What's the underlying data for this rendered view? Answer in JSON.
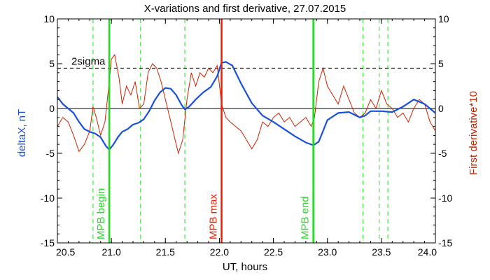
{
  "chart_data": {
    "type": "line",
    "title": "X-variations and first derivative, 27.07.2015",
    "xlabel": "UT, hours",
    "ylabel_left": "deltaX, nT",
    "ylabel_right": "First derivative*10",
    "xlim": [
      20.5,
      24.0
    ],
    "ylim": [
      -15,
      10
    ],
    "x_ticks": [
      "20.5",
      "21.0",
      "21.5",
      "22.0",
      "22.5",
      "23.0",
      "23.5",
      "24.0"
    ],
    "x_tick_values": [
      20.5,
      21.0,
      21.5,
      22.0,
      22.5,
      23.0,
      23.5,
      24.0
    ],
    "y_ticks": [
      "-15",
      "-10",
      "-5",
      "0",
      "5",
      "10"
    ],
    "y_tick_values": [
      -15,
      -10,
      -5,
      0,
      5,
      10
    ],
    "colors": {
      "deltaX": "#1a50d8",
      "derivative": "#cc2200",
      "mpb_lines": "#22dd22",
      "max_line": "#ee2200",
      "reference": "#000000"
    },
    "threshold": {
      "label": "2sigma",
      "value": 4.5
    },
    "markers": [
      {
        "label": "MPB begin",
        "x": 20.98
      },
      {
        "label": "MPB max",
        "x": 22.02
      },
      {
        "label": "MPB end",
        "x": 22.87
      }
    ],
    "dashed_x": [
      20.83,
      21.27,
      21.68,
      23.33,
      23.48,
      23.56
    ],
    "series": [
      {
        "id": "deltaX",
        "x": [
          20.5,
          20.55,
          20.6,
          20.65,
          20.7,
          20.75,
          20.8,
          20.85,
          20.9,
          20.95,
          20.98,
          21.02,
          21.06,
          21.1,
          21.15,
          21.2,
          21.25,
          21.3,
          21.35,
          21.4,
          21.45,
          21.5,
          21.55,
          21.6,
          21.65,
          21.68,
          21.72,
          21.78,
          21.85,
          21.92,
          21.98,
          22.02,
          22.06,
          22.12,
          22.2,
          22.3,
          22.4,
          22.5,
          22.6,
          22.7,
          22.8,
          22.87,
          22.92,
          23.0,
          23.1,
          23.2,
          23.3,
          23.35,
          23.4,
          23.5,
          23.6,
          23.7,
          23.8,
          23.9,
          24.0
        ],
        "y": [
          1.3,
          0.5,
          0.0,
          -0.5,
          -1.5,
          -2.3,
          -2.6,
          -2.8,
          -3.2,
          -4.2,
          -4.6,
          -4.0,
          -3.2,
          -2.6,
          -2.3,
          -1.8,
          -1.6,
          -1.2,
          -0.3,
          0.9,
          1.8,
          2.3,
          2.2,
          1.5,
          0.4,
          -0.1,
          0.2,
          1.0,
          1.8,
          2.4,
          3.6,
          5.1,
          5.2,
          4.8,
          2.8,
          0.6,
          -0.8,
          -1.5,
          -2.3,
          -3.1,
          -3.8,
          -4.1,
          -3.7,
          -1.3,
          -0.5,
          -0.4,
          -1.0,
          -0.8,
          -0.3,
          -0.3,
          -0.4,
          0.2,
          1.0,
          0.5,
          -0.5
        ]
      },
      {
        "id": "derivative",
        "x": [
          20.5,
          20.55,
          20.6,
          20.65,
          20.7,
          20.75,
          20.8,
          20.83,
          20.86,
          20.9,
          20.94,
          20.98,
          21.0,
          21.03,
          21.07,
          21.1,
          21.14,
          21.18,
          21.22,
          21.26,
          21.3,
          21.34,
          21.38,
          21.42,
          21.46,
          21.5,
          21.54,
          21.58,
          21.62,
          21.66,
          21.7,
          21.74,
          21.78,
          21.82,
          21.86,
          21.9,
          21.94,
          21.98,
          22.02,
          22.06,
          22.1,
          22.15,
          22.2,
          22.25,
          22.3,
          22.35,
          22.4,
          22.45,
          22.5,
          22.55,
          22.6,
          22.65,
          22.7,
          22.75,
          22.8,
          22.85,
          22.88,
          22.92,
          22.96,
          23.0,
          23.05,
          23.1,
          23.15,
          23.2,
          23.25,
          23.3,
          23.35,
          23.4,
          23.45,
          23.5,
          23.55,
          23.6,
          23.65,
          23.7,
          23.75,
          23.8,
          23.85,
          23.9,
          23.95,
          24.0
        ],
        "y": [
          -2.0,
          -1.0,
          -1.5,
          -3.0,
          -4.8,
          -4.0,
          -2.5,
          0.2,
          -1.0,
          -3.0,
          -1.5,
          3.0,
          5.5,
          6.0,
          3.5,
          0.5,
          2.5,
          1.5,
          3.0,
          0.0,
          0.5,
          4.0,
          5.0,
          4.5,
          3.0,
          1.0,
          -1.0,
          -3.0,
          -5.0,
          -3.5,
          1.0,
          4.0,
          2.5,
          4.0,
          3.5,
          4.5,
          4.0,
          4.8,
          0.5,
          -1.0,
          -1.5,
          -2.0,
          -2.5,
          -3.5,
          -4.5,
          -3.5,
          -1.5,
          -2.0,
          -1.0,
          -0.5,
          -1.5,
          -1.0,
          -2.0,
          -1.5,
          -1.0,
          -2.0,
          -1.0,
          3.0,
          4.5,
          2.5,
          1.5,
          0.5,
          2.5,
          1.0,
          -0.5,
          -1.0,
          -0.5,
          1.0,
          0.0,
          2.0,
          0.5,
          0.0,
          -1.0,
          -0.5,
          -1.5,
          0.0,
          1.0,
          0.5,
          -1.5,
          -2.5
        ]
      }
    ]
  }
}
